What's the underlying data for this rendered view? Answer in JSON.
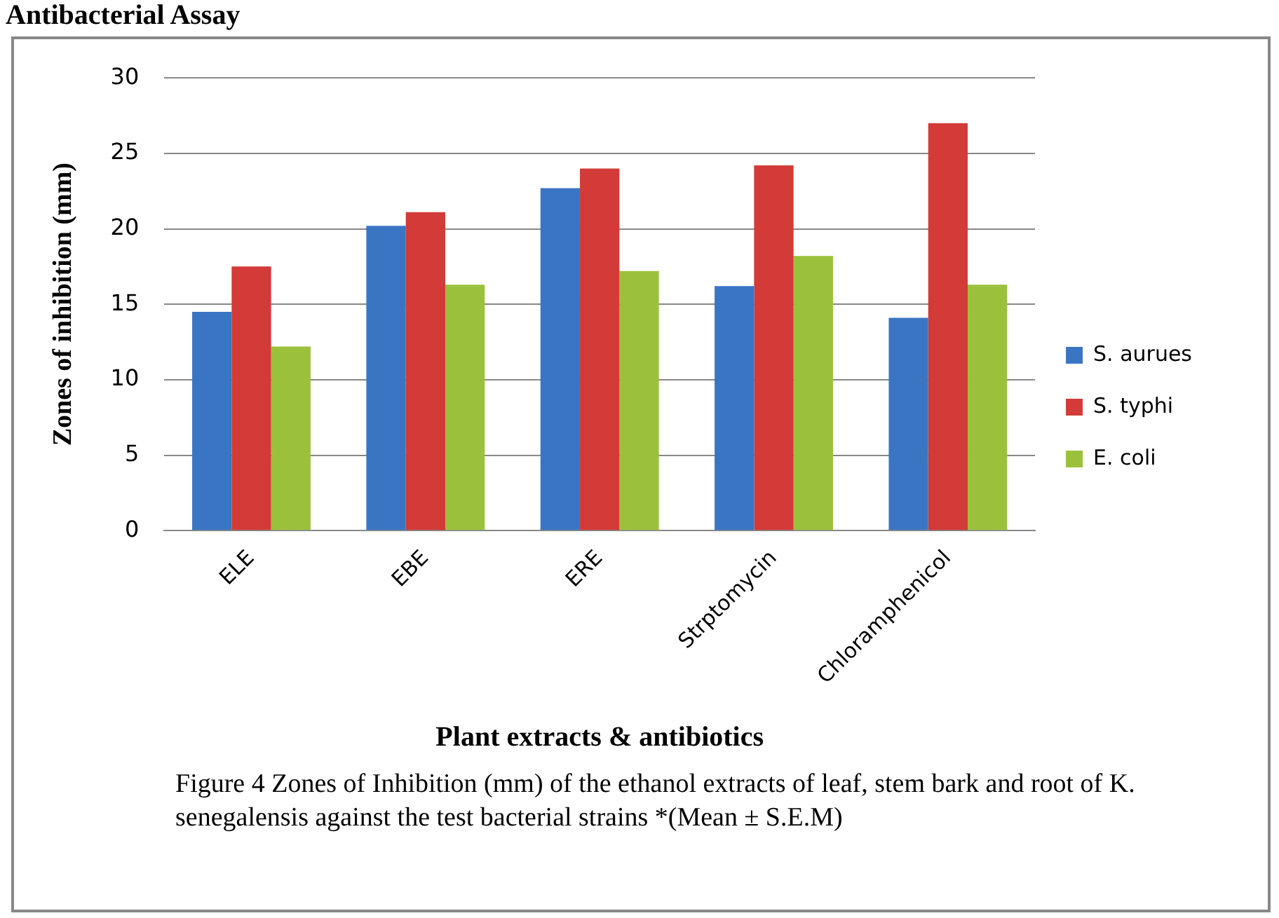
{
  "chart_data": {
    "type": "bar",
    "title": "Antibacterial Assay",
    "xlabel": "Plant extracts & antibiotics",
    "ylabel": "Zones of inhibition (mm)",
    "categories": [
      "ELE",
      "EBE",
      "ERE",
      "Strptomycin",
      "Chloramphenicol"
    ],
    "series": [
      {
        "name": "S. aurues",
        "color": "#3a75c4",
        "values": [
          14.5,
          20.2,
          22.7,
          16.2,
          14.1
        ]
      },
      {
        "name": "S. typhi",
        "color": "#d23b37",
        "values": [
          17.5,
          21.1,
          24.0,
          24.2,
          27.0
        ]
      },
      {
        "name": "E. coli",
        "color": "#9bc13c",
        "values": [
          12.2,
          16.3,
          17.2,
          18.2,
          16.3
        ]
      }
    ],
    "ylim": [
      0,
      30
    ],
    "yticks": [
      0,
      5,
      10,
      15,
      20,
      25,
      30
    ],
    "grid": "y",
    "legend": "right",
    "annotations": [
      "Figure 4 Zones of Inhibition (mm) of the ethanol extracts of leaf, stem bark and root of K. senegalensis against the test bacterial strains *(Mean ± S.E.M)"
    ]
  }
}
